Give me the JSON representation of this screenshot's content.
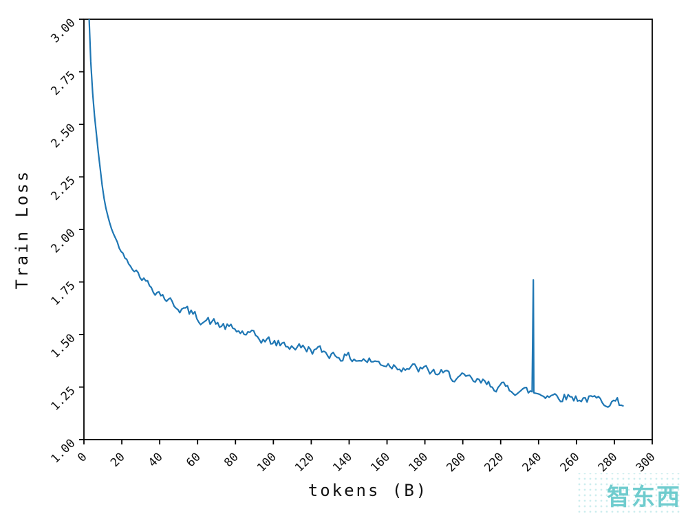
{
  "chart_data": {
    "type": "line",
    "title": "",
    "xlabel": "tokens (B)",
    "ylabel": "Train Loss",
    "xlim": [
      0,
      300
    ],
    "ylim": [
      1.0,
      3.0
    ],
    "grid": false,
    "legend": "none",
    "tick_rotation_deg": -45,
    "x_ticks": [
      0,
      20,
      40,
      60,
      80,
      100,
      120,
      140,
      160,
      180,
      200,
      220,
      240,
      260,
      280,
      300
    ],
    "x_tick_labels": [
      "0",
      "20",
      "40",
      "60",
      "80",
      "100",
      "120",
      "140",
      "160",
      "180",
      "200",
      "220",
      "240",
      "260",
      "280",
      "300"
    ],
    "y_ticks": [
      1.0,
      1.25,
      1.5,
      1.75,
      2.0,
      2.25,
      2.5,
      2.75,
      3.0
    ],
    "y_tick_labels": [
      "1.00",
      "1.25",
      "1.50",
      "1.75",
      "2.00",
      "2.25",
      "2.50",
      "2.75",
      "3.00"
    ],
    "series": [
      {
        "name": "train-loss",
        "color": "#1f77b4",
        "x_end": 285,
        "trend_x": [
          0,
          1,
          2,
          3,
          4,
          5,
          6,
          7,
          8,
          9,
          10,
          12,
          14,
          16,
          18,
          20,
          25,
          30,
          35,
          40,
          45,
          50,
          55,
          60,
          70,
          80,
          90,
          100,
          110,
          120,
          130,
          140,
          150,
          160,
          170,
          180,
          190,
          200,
          210,
          220,
          230,
          240,
          250,
          260,
          270,
          280,
          285
        ],
        "trend_y": [
          4.3,
          3.7,
          3.2,
          2.92,
          2.72,
          2.6,
          2.5,
          2.42,
          2.33,
          2.26,
          2.18,
          2.08,
          2.02,
          1.97,
          1.93,
          1.89,
          1.83,
          1.78,
          1.73,
          1.7,
          1.66,
          1.63,
          1.61,
          1.58,
          1.55,
          1.52,
          1.49,
          1.46,
          1.445,
          1.43,
          1.41,
          1.39,
          1.375,
          1.36,
          1.345,
          1.33,
          1.31,
          1.29,
          1.27,
          1.25,
          1.235,
          1.22,
          1.21,
          1.2,
          1.19,
          1.18,
          1.17
        ]
      }
    ],
    "spike": {
      "x": 237,
      "y": 1.76
    },
    "noise_amplitude": 0.022
  },
  "colors": {
    "line": "#1f77b4",
    "axis": "#000000",
    "watermark": "#6fccce"
  },
  "watermark": {
    "text": "智东西"
  }
}
